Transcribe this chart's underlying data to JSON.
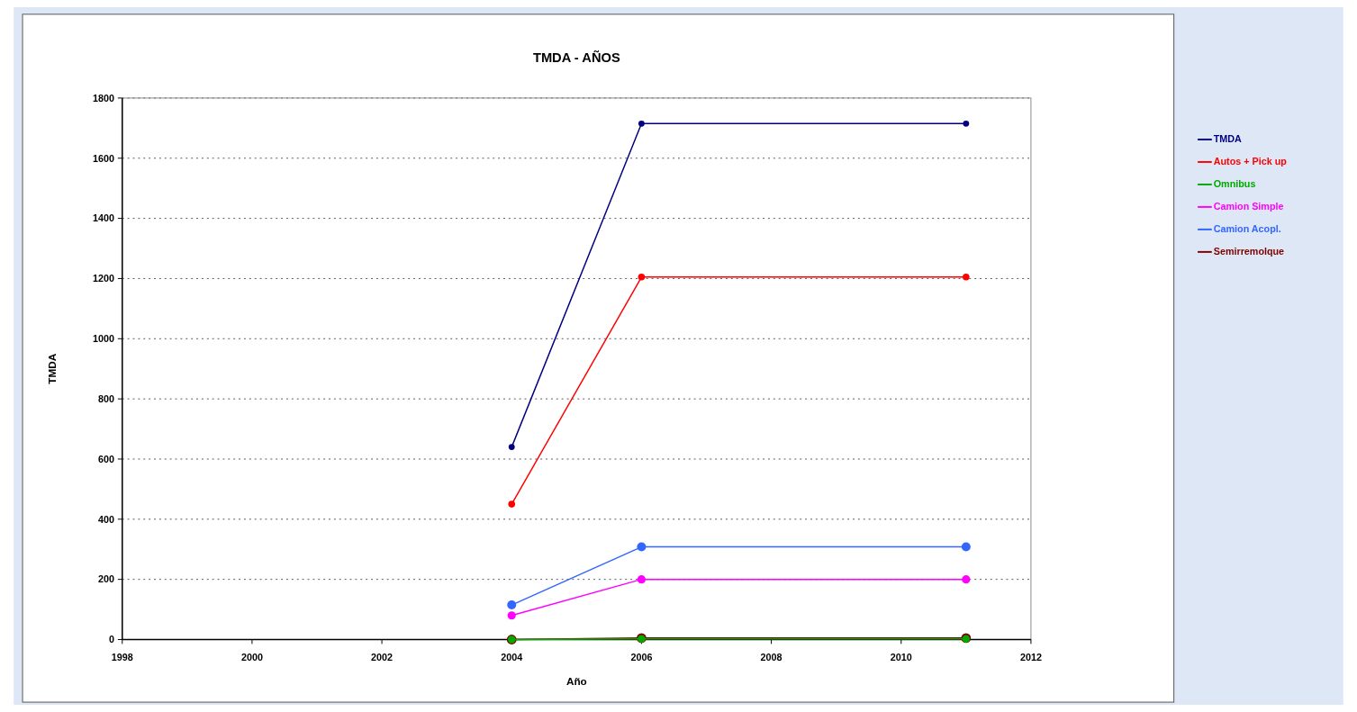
{
  "chart_data": {
    "type": "line",
    "title": "TMDA - AÑOS",
    "xlabel": "Año",
    "ylabel": "TMDA",
    "x": [
      2004,
      2006,
      2011
    ],
    "xlim": [
      1998,
      2012
    ],
    "xticks": [
      1998,
      2000,
      2002,
      2004,
      2006,
      2008,
      2010,
      2012
    ],
    "ylim": [
      0,
      1800
    ],
    "yticks": [
      0,
      200,
      400,
      600,
      800,
      1000,
      1200,
      1400,
      1600,
      1800
    ],
    "grid": "y",
    "legend": "right",
    "marker": "circle",
    "series": [
      {
        "name": "TMDA",
        "color": "#000080",
        "values": [
          640,
          1715,
          1715
        ]
      },
      {
        "name": "Autos + Pick up",
        "color": "#ff0000",
        "values": [
          450,
          1205,
          1205
        ]
      },
      {
        "name": "Omnibus",
        "color": "#00aa00",
        "values": [
          0,
          2,
          2
        ]
      },
      {
        "name": "Camion Simple",
        "color": "#ff00ff",
        "values": [
          80,
          200,
          200
        ]
      },
      {
        "name": "Camion Acopl.",
        "color": "#3366ff",
        "values": [
          115,
          308,
          308
        ]
      },
      {
        "name": "Semirremolque",
        "color": "#800000",
        "values": [
          0,
          5,
          5
        ]
      }
    ]
  }
}
